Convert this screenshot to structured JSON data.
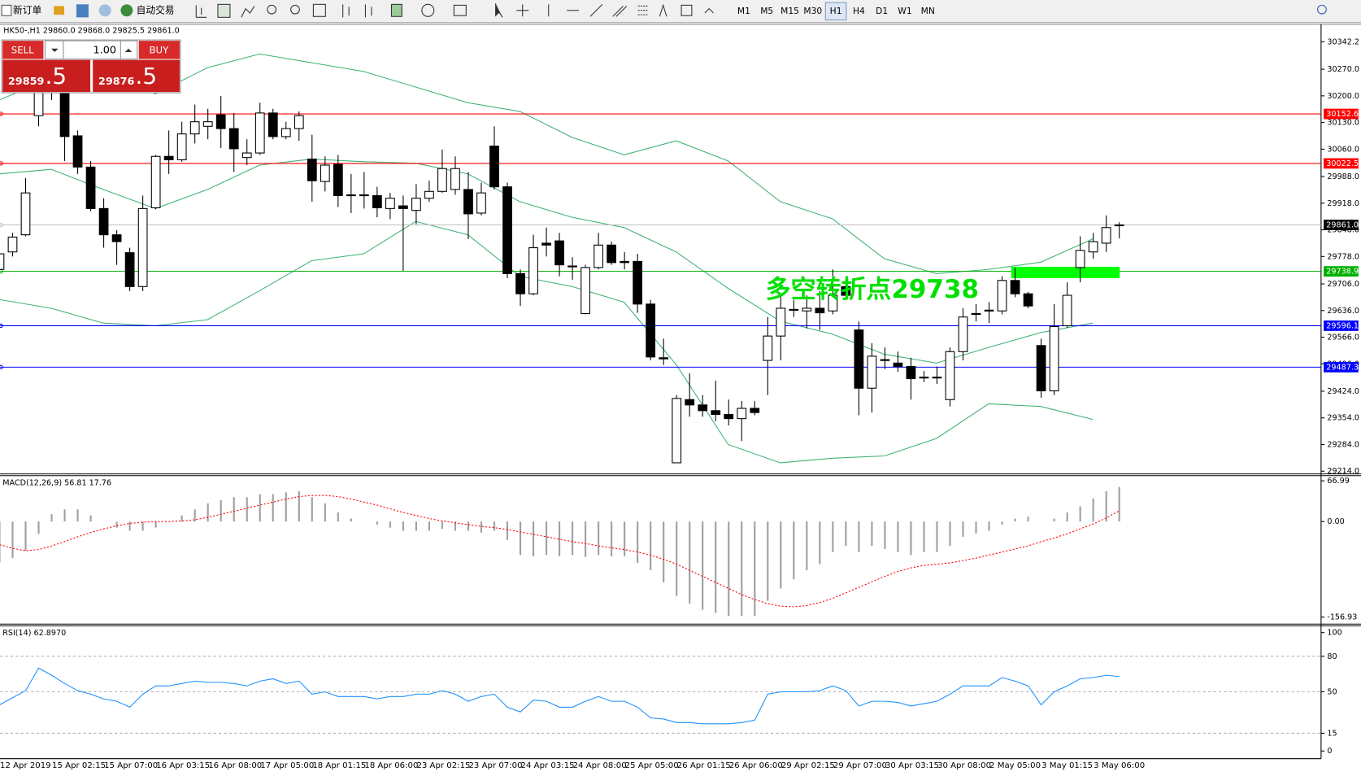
{
  "toolbar": {
    "new_order": "新订单",
    "auto_trading": "自动交易",
    "periods": [
      "M1",
      "M5",
      "M15",
      "M30",
      "H1",
      "H4",
      "D1",
      "W1",
      "MN"
    ],
    "active": 4
  },
  "trade_panel": {
    "sell": "SELL",
    "buy": "BUY",
    "lots": "1.00",
    "bid_big": "29859",
    "bid_small": ".5",
    "ask_big": "29876",
    "ask_small": ".5"
  },
  "chart_data": [
    {
      "type": "candlestick",
      "title": "HK50-,H1  29860.0 29868.0 29825.5 29861.0",
      "categories": [
        "12 Apr 2019",
        null,
        null,
        null,
        "15 Apr 02:15",
        null,
        null,
        null,
        "15 Apr 07:00",
        null,
        null,
        null,
        "16 Apr 03:15",
        null,
        null,
        null,
        "16 Apr 08:00",
        null,
        null,
        null,
        "17 Apr 05:00",
        null,
        null,
        null,
        "18 Apr 01:15",
        null,
        null,
        null,
        "18 Apr 06:00",
        null,
        null,
        null,
        "23 Apr 02:15",
        null,
        null,
        null,
        "23 Apr 07:00",
        null,
        null,
        null,
        "24 Apr 03:15",
        null,
        null,
        null,
        "24 Apr 08:00",
        null,
        null,
        null,
        "25 Apr 05:00",
        null,
        null,
        null,
        "26 Apr 01:15",
        null,
        null,
        null,
        "26 Apr 06:00",
        null,
        null,
        null,
        "29 Apr 02:15",
        null,
        null,
        null,
        "29 Apr 07:00",
        null,
        null,
        null,
        "30 Apr 03:15",
        null,
        null,
        null,
        "30 Apr 08:00",
        null,
        null,
        null,
        "2 May 05:00",
        null,
        null,
        null,
        "3 May 01:15",
        null,
        null,
        null,
        "3 May 06:00",
        null,
        null
      ],
      "ohlc": [
        [
          29744,
          29794,
          29733,
          29785
        ],
        [
          29790,
          29840,
          29778,
          29829
        ],
        [
          29835,
          29984,
          29831,
          29945
        ],
        [
          30148,
          30246,
          30120,
          30223
        ],
        [
          30212,
          30234,
          30189,
          30216
        ],
        [
          30223,
          30234,
          30029,
          30093
        ],
        [
          30095,
          30109,
          29995,
          30013
        ],
        [
          30013,
          30029,
          29897,
          29904
        ],
        [
          29904,
          29931,
          29801,
          29835
        ],
        [
          29835,
          29847,
          29756,
          29817
        ],
        [
          29788,
          29801,
          29687,
          29699
        ],
        [
          29699,
          29938,
          29687,
          29904
        ],
        [
          29906,
          30045,
          29902,
          30041
        ],
        [
          30041,
          30109,
          29995,
          30032
        ],
        [
          30032,
          30132,
          30027,
          30100
        ],
        [
          30100,
          30177,
          30075,
          30132
        ],
        [
          30120,
          30166,
          30086,
          30132
        ],
        [
          30150,
          30200,
          30063,
          30114
        ],
        [
          30114,
          30155,
          30000,
          30061
        ],
        [
          30038,
          30086,
          30018,
          30050
        ],
        [
          30050,
          30182,
          30045,
          30155
        ],
        [
          30155,
          30166,
          30086,
          30093
        ],
        [
          30093,
          30132,
          30086,
          30114
        ],
        [
          30114,
          30159,
          30082,
          30148
        ],
        [
          30034,
          30098,
          29922,
          29977
        ],
        [
          29975,
          30041,
          29949,
          30018
        ],
        [
          30020,
          30045,
          29908,
          29938
        ],
        [
          29940,
          29995,
          29892,
          29938
        ],
        [
          29940,
          30000,
          29904,
          29938
        ],
        [
          29938,
          29961,
          29881,
          29906
        ],
        [
          29904,
          29945,
          29876,
          29931
        ],
        [
          29911,
          29938,
          29740,
          29904
        ],
        [
          29899,
          29968,
          29863,
          29931
        ],
        [
          29931,
          29977,
          29922,
          29949
        ],
        [
          29949,
          30059,
          29945,
          30009
        ],
        [
          29954,
          30041,
          29940,
          30009
        ],
        [
          29954,
          30000,
          29824,
          29890
        ],
        [
          29892,
          29972,
          29886,
          29945
        ],
        [
          30068,
          30120,
          29954,
          29961
        ],
        [
          29961,
          29972,
          29721,
          29733
        ],
        [
          29733,
          29744,
          29648,
          29680
        ],
        [
          29680,
          29835,
          29676,
          29801
        ],
        [
          29813,
          29854,
          29778,
          29808
        ],
        [
          29819,
          29840,
          29726,
          29756
        ],
        [
          29753,
          29776,
          29717,
          29751
        ],
        [
          29628,
          29756,
          29626,
          29749
        ],
        [
          29749,
          29840,
          29744,
          29808
        ],
        [
          29808,
          29817,
          29756,
          29762
        ],
        [
          29765,
          29790,
          29744,
          29762
        ],
        [
          29765,
          29785,
          29630,
          29653
        ],
        [
          29653,
          29664,
          29505,
          29514
        ],
        [
          29512,
          29562,
          29493,
          29509
        ],
        [
          29236,
          29414,
          29236,
          29405
        ],
        [
          29402,
          29471,
          29357,
          29388
        ],
        [
          29388,
          29414,
          29357,
          29373
        ],
        [
          29373,
          29452,
          29345,
          29363
        ],
        [
          29363,
          29402,
          29334,
          29352
        ],
        [
          29352,
          29398,
          29293,
          29379
        ],
        [
          29379,
          29398,
          29361,
          29368
        ],
        [
          29505,
          29619,
          29414,
          29569
        ],
        [
          29569,
          29676,
          29505,
          29642
        ],
        [
          29639,
          29664,
          29619,
          29639
        ],
        [
          29635,
          29676,
          29589,
          29642
        ],
        [
          29642,
          29687,
          29585,
          29630
        ],
        [
          29635,
          29744,
          29626,
          29676
        ],
        [
          29699,
          29721,
          29664,
          29676
        ],
        [
          29585,
          29607,
          29361,
          29432
        ],
        [
          29432,
          29550,
          29368,
          29516
        ],
        [
          29507,
          29539,
          29482,
          29505
        ],
        [
          29498,
          29528,
          29475,
          29489
        ],
        [
          29489,
          29512,
          29402,
          29457
        ],
        [
          29461,
          29477,
          29448,
          29461
        ],
        [
          29461,
          29489,
          29443,
          29461
        ],
        [
          29402,
          29539,
          29384,
          29528
        ],
        [
          29528,
          29642,
          29505,
          29619
        ],
        [
          29626,
          29653,
          29607,
          29628
        ],
        [
          29635,
          29658,
          29603,
          29637
        ],
        [
          29635,
          29726,
          29626,
          29715
        ],
        [
          29715,
          29749,
          29671,
          29680
        ],
        [
          29680,
          29685,
          29642,
          29648
        ],
        [
          29544,
          29562,
          29407,
          29425
        ],
        [
          29425,
          29653,
          29414,
          29594
        ],
        [
          29596,
          29710,
          29591,
          29676
        ],
        [
          29749,
          29831,
          29710,
          29794
        ],
        [
          29790,
          29840,
          29772,
          29817
        ],
        [
          29813,
          29886,
          29790,
          29854
        ],
        [
          29860,
          29868,
          29825.5,
          29861
        ]
      ],
      "bands": [
        {
          "color": "#3cb371",
          "values": [
            30189,
            30246,
            30274,
            30205,
            30274,
            30310,
            30287,
            30264,
            30223,
            30182,
            30159,
            30091,
            30045,
            30082,
            30029,
            29922,
            29877,
            29772,
            29733,
            29744,
            29763,
            29824
          ]
        },
        {
          "color": "#3cb371",
          "values": [
            29995,
            30007,
            29954,
            29904,
            29954,
            30018,
            30034,
            30027,
            30023,
            29995,
            29922,
            29881,
            29854,
            29790,
            29694,
            29608,
            29574,
            29521,
            29498,
            29539,
            29578,
            29603
          ]
        },
        {
          "color": "#3cb371",
          "values": [
            29665,
            29642,
            29603,
            29596,
            29612,
            29688,
            29767,
            29785,
            29870,
            29835,
            29726,
            29699,
            29658,
            29494,
            29284,
            29236,
            29248,
            29254,
            29300,
            29391,
            29384,
            29350
          ]
        }
      ],
      "hlines": [
        {
          "value": 30152.6,
          "color": "#ff0000"
        },
        {
          "value": 30022.5,
          "color": "#ff0000"
        },
        {
          "value": 29861,
          "label": "29861.0",
          "color": "#c0c0c0",
          "box": "#000000"
        },
        {
          "value": 29738.9,
          "color": "#00b000"
        },
        {
          "value": 29596.1,
          "color": "#0000ff"
        },
        {
          "value": 29487.3,
          "color": "#0000ff"
        }
      ],
      "highlight": {
        "from": 29721,
        "to": 29751,
        "color": "#00ff00"
      },
      "annotation": {
        "text": "多空转折点29738",
        "color": "#00e000"
      },
      "ylim": [
        29209,
        30388
      ],
      "yticks": [
        {
          "value": 30342.2,
          "label": "30342.2"
        },
        {
          "value": 30270,
          "label": "30270.0"
        },
        {
          "value": 30200,
          "label": "30200.0"
        },
        {
          "value": 30130,
          "label": "30130.0"
        },
        {
          "value": 30060,
          "label": "30060.0"
        },
        {
          "value": 29988,
          "label": "29988.0"
        },
        {
          "value": 29918,
          "label": "29918.0"
        },
        {
          "value": 29848,
          "label": "29848.0"
        },
        {
          "value": 29778,
          "label": "29778.0"
        },
        {
          "value": 29706,
          "label": "29706.0"
        },
        {
          "value": 29636,
          "label": "29636.0"
        },
        {
          "value": 29566,
          "label": "29566.0"
        },
        {
          "value": 29496,
          "label": "29496.0"
        },
        {
          "value": 29424,
          "label": "29424.0"
        },
        {
          "value": 29354,
          "label": "29354.0"
        },
        {
          "value": 29284,
          "label": "29284.0"
        },
        {
          "value": 29214,
          "label": "29214.0"
        }
      ]
    },
    {
      "type": "macd",
      "title": "MACD(12,26,9) 56.81 17.76",
      "color": "#a0a0a0",
      "signal_color": "#ff0000",
      "values": [
        -67,
        -60,
        -48,
        -20,
        12,
        20,
        20,
        10,
        0,
        -10,
        -15,
        -15,
        -10,
        0,
        10,
        20,
        30,
        35,
        40,
        40,
        45,
        45,
        48,
        50,
        40,
        30,
        15,
        5,
        0,
        -5,
        -10,
        -15,
        -15,
        -15,
        -12,
        -15,
        -15,
        -18,
        -15,
        -30,
        -55,
        -57,
        -55,
        -57,
        -55,
        -58,
        -55,
        -57,
        -57,
        -68,
        -80,
        -100,
        -122,
        -135,
        -145,
        -150,
        -155,
        -155,
        -155,
        -130,
        -110,
        -95,
        -80,
        -70,
        -50,
        -40,
        -50,
        -40,
        -45,
        -50,
        -55,
        -50,
        -50,
        -40,
        -25,
        -20,
        -15,
        -5,
        5,
        8,
        0,
        5,
        15,
        25,
        38,
        50,
        56.81
      ],
      "signal": [
        -38,
        -44,
        -48,
        -46,
        -40,
        -33,
        -25,
        -18,
        -12,
        -7,
        -3,
        -1,
        0,
        0,
        1,
        3,
        7,
        12,
        17,
        22,
        27,
        32,
        37,
        41,
        43,
        43,
        41,
        37,
        32,
        27,
        21,
        15,
        10,
        5,
        1,
        -2,
        -5,
        -8,
        -10,
        -13,
        -17,
        -21,
        -25,
        -29,
        -33,
        -36,
        -40,
        -43,
        -46,
        -50,
        -55,
        -62,
        -70,
        -80,
        -90,
        -100,
        -110,
        -120,
        -128,
        -135,
        -139,
        -140,
        -138,
        -133,
        -126,
        -117,
        -108,
        -99,
        -90,
        -82,
        -76,
        -72,
        -70,
        -68,
        -64,
        -60,
        -55,
        -50,
        -45,
        -40,
        -33,
        -27,
        -20,
        -12,
        -4,
        6,
        17.76
      ],
      "ylim": [
        -167,
        74
      ],
      "yticks": [
        66.99,
        {
          "value": 0,
          "label": "0.00"
        },
        -156.93
      ]
    },
    {
      "type": "line",
      "title": "RSI(14) 62.8970",
      "color": "#1e90ff",
      "grid": "dashed",
      "values": [
        39,
        45,
        51,
        70,
        64,
        57,
        51,
        48,
        44,
        42,
        37,
        48,
        55,
        55,
        57,
        59,
        58,
        58,
        57,
        55,
        59,
        61,
        57,
        59,
        48,
        50,
        46,
        46,
        46,
        44,
        46,
        46,
        48,
        48,
        51,
        48,
        42,
        46,
        48,
        37,
        33,
        43,
        42,
        37,
        37,
        42,
        46,
        42,
        42,
        37,
        28,
        27,
        24,
        24,
        23,
        23,
        23,
        24,
        26,
        48,
        50,
        50,
        50,
        51,
        55,
        51,
        38,
        42,
        42,
        41,
        38,
        40,
        42,
        48,
        55,
        55,
        55,
        62,
        59,
        55,
        39,
        50,
        55,
        61,
        62,
        64,
        62.897
      ],
      "ylim": [
        -5,
        105
      ],
      "yticks": [
        100,
        80,
        50,
        15,
        0
      ]
    }
  ]
}
